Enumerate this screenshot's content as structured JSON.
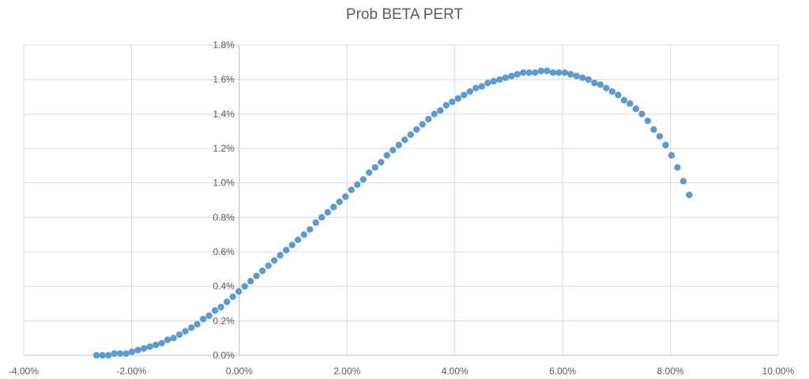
{
  "chart_data": {
    "type": "scatter",
    "title": "Prob BETA PERT",
    "xlabel": "",
    "ylabel": "",
    "xlim": [
      -0.04,
      0.1
    ],
    "ylim": [
      0,
      0.018
    ],
    "x_ticks": [
      -0.04,
      -0.02,
      0.0,
      0.02,
      0.04,
      0.06,
      0.08,
      0.1
    ],
    "x_tick_labels": [
      "-4.00%",
      "-2.00%",
      "0.00%",
      "2.00%",
      "4.00%",
      "6.00%",
      "8.00%",
      "10.00%"
    ],
    "y_ticks": [
      0,
      0.002,
      0.004,
      0.006,
      0.008,
      0.01,
      0.012,
      0.014,
      0.016,
      0.018
    ],
    "y_tick_labels": [
      "0.0%",
      "0.2%",
      "0.4%",
      "0.6%",
      "0.8%",
      "1.0%",
      "1.2%",
      "1.4%",
      "1.6%",
      "1.8%"
    ],
    "grid": true,
    "legend": "none",
    "marker_color": "#5B9BD5",
    "series": [
      {
        "x": [
          -0.0265,
          -0.0254,
          -0.0243,
          -0.0232,
          -0.0221,
          -0.021,
          -0.0199,
          -0.0188,
          -0.0177,
          -0.0166,
          -0.0155,
          -0.0144,
          -0.0133,
          -0.0122,
          -0.0111,
          -0.01,
          -0.0089,
          -0.0078,
          -0.0067,
          -0.0056,
          -0.0045,
          -0.0034,
          -0.0023,
          -0.0012,
          -0.0001,
          0.001,
          0.0021,
          0.0032,
          0.0043,
          0.0054,
          0.0065,
          0.0076,
          0.0087,
          0.0098,
          0.0109,
          0.012,
          0.0131,
          0.0142,
          0.0153,
          0.0164,
          0.0175,
          0.0186,
          0.0197,
          0.0208,
          0.0219,
          0.023,
          0.0241,
          0.0252,
          0.0263,
          0.0274,
          0.0285,
          0.0296,
          0.0307,
          0.0318,
          0.0329,
          0.034,
          0.0351,
          0.0362,
          0.0373,
          0.0384,
          0.0395,
          0.0406,
          0.0417,
          0.0428,
          0.0439,
          0.045,
          0.0461,
          0.0472,
          0.0483,
          0.0494,
          0.0505,
          0.0516,
          0.0527,
          0.0538,
          0.0549,
          0.056,
          0.0571,
          0.0582,
          0.0593,
          0.0604,
          0.0615,
          0.0626,
          0.0637,
          0.0648,
          0.0659,
          0.067,
          0.0681,
          0.0692,
          0.0703,
          0.0714,
          0.0725,
          0.0736,
          0.0747,
          0.0758,
          0.0769,
          0.078,
          0.0791,
          0.0802,
          0.0813,
          0.0824,
          0.0835
        ],
        "y": [
          0.0,
          0.0,
          0.0,
          0.0001,
          0.0001,
          0.0001,
          0.0002,
          0.0003,
          0.0004,
          0.0005,
          0.0006,
          0.0007,
          0.0009,
          0.001,
          0.0012,
          0.0014,
          0.0016,
          0.0018,
          0.0021,
          0.0023,
          0.0026,
          0.0028,
          0.0031,
          0.0034,
          0.0037,
          0.004,
          0.0043,
          0.0046,
          0.0049,
          0.0052,
          0.0055,
          0.0058,
          0.0061,
          0.0064,
          0.0067,
          0.007,
          0.0073,
          0.0077,
          0.008,
          0.0083,
          0.0086,
          0.0089,
          0.0092,
          0.0096,
          0.0099,
          0.0102,
          0.0106,
          0.0109,
          0.0112,
          0.0116,
          0.0119,
          0.0122,
          0.0125,
          0.0128,
          0.0131,
          0.0134,
          0.0137,
          0.014,
          0.0142,
          0.0145,
          0.0147,
          0.0149,
          0.0151,
          0.0153,
          0.0155,
          0.0156,
          0.0158,
          0.0159,
          0.016,
          0.0161,
          0.0162,
          0.0163,
          0.0164,
          0.0164,
          0.0164,
          0.0165,
          0.0165,
          0.0164,
          0.0164,
          0.0164,
          0.0163,
          0.0162,
          0.0161,
          0.016,
          0.0158,
          0.0157,
          0.0155,
          0.0153,
          0.0151,
          0.0148,
          0.0146,
          0.0143,
          0.014,
          0.0136,
          0.0131,
          0.0127,
          0.0122,
          0.0116,
          0.0109,
          0.0101,
          0.0093
        ]
      }
    ]
  }
}
